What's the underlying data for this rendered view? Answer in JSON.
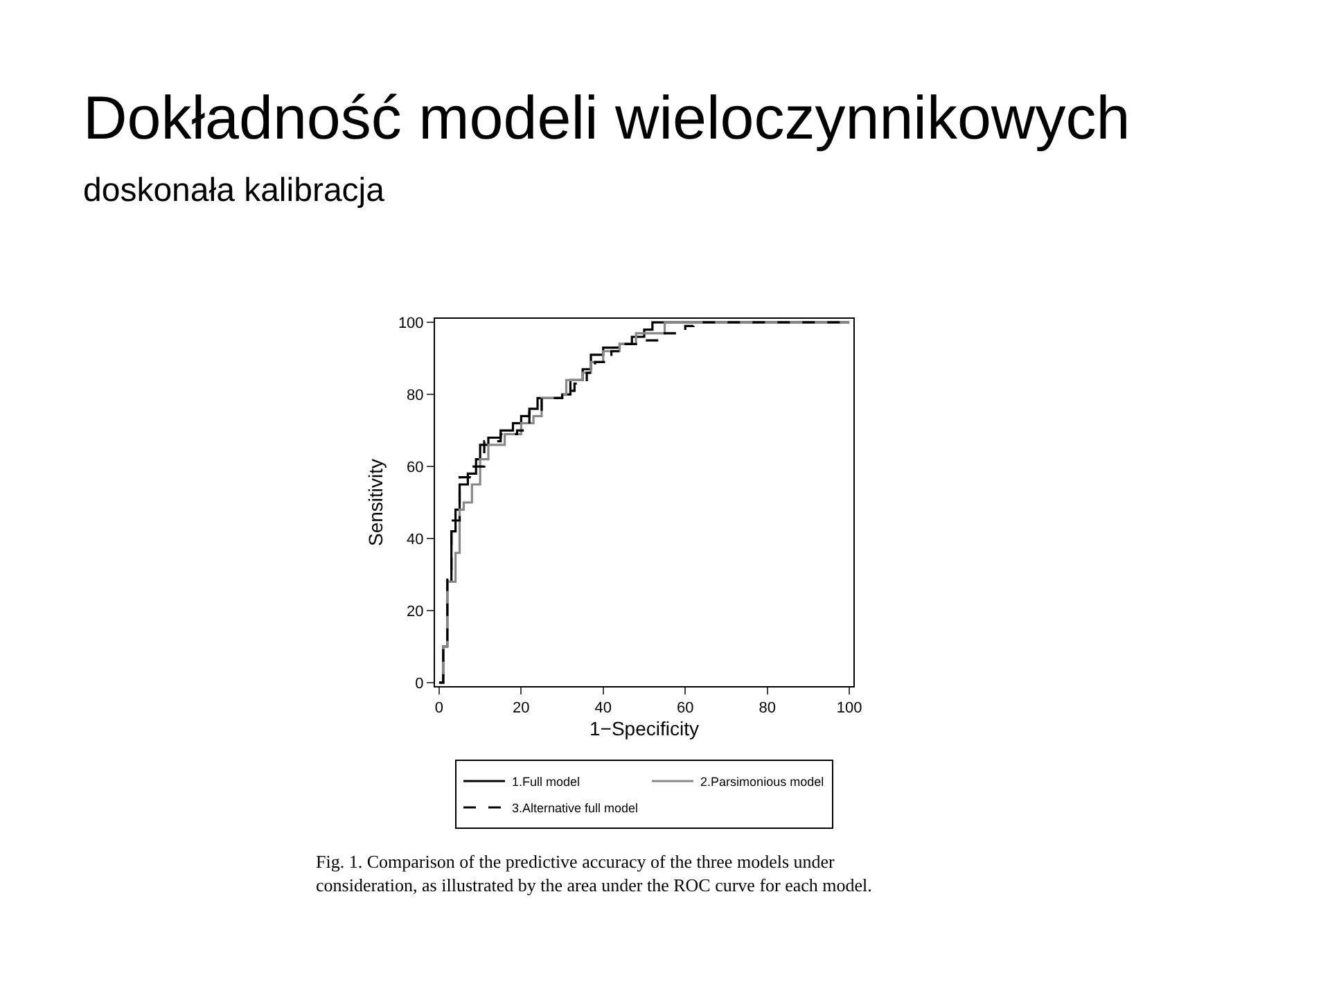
{
  "chart_data": {
    "type": "step",
    "title": "Dokładność modeli wieloczynnikowych",
    "subtitle": "doskonała kalibracja",
    "xlabel": "1−Specificity",
    "ylabel": "Sensitivity",
    "annotations": [
      "Fig. 1. Comparison of the predictive accuracy of the three models under consideration, as illustrated by the area under the ROC curve for each model."
    ],
    "xlim": [
      -1,
      101
    ],
    "ylim": [
      -1,
      101
    ],
    "xticks": [
      0,
      20,
      40,
      60,
      80,
      100
    ],
    "yticks": [
      0,
      20,
      40,
      60,
      80,
      100
    ],
    "grid": false,
    "legend": "bottom",
    "marker": "none",
    "series": [
      {
        "name": "1.Full model",
        "color": "#000000",
        "line_style": "solid",
        "x": [
          0,
          1,
          2,
          3,
          4,
          5,
          7,
          9,
          10,
          12,
          15,
          18,
          20,
          22,
          24,
          30,
          32,
          35,
          37,
          40,
          44,
          47,
          50,
          52,
          100
        ],
        "values": [
          0,
          10,
          28,
          42,
          48,
          55,
          58,
          62,
          66,
          68,
          70,
          72,
          74,
          76,
          79,
          80,
          84,
          87,
          91,
          93,
          94,
          96,
          98,
          100,
          100
        ]
      },
      {
        "name": "2.Parsimonious model",
        "color": "#888888",
        "line_style": "solid",
        "x": [
          0,
          1,
          2,
          4,
          5,
          6,
          8,
          10,
          12,
          16,
          20,
          23,
          25,
          30,
          31,
          35,
          37,
          40,
          44,
          48,
          55,
          100
        ],
        "values": [
          0,
          10,
          28,
          36,
          48,
          50,
          55,
          62,
          66,
          69,
          72,
          74,
          79,
          80,
          84,
          86,
          89,
          92,
          94,
          97,
          100,
          100
        ]
      },
      {
        "name": "3.Alternative full model",
        "color": "#000000",
        "line_style": "dashed",
        "x": [
          0,
          1,
          2,
          3,
          5,
          8,
          11,
          15,
          19,
          22,
          25,
          30,
          33,
          36,
          38,
          42,
          45,
          50,
          54,
          60,
          62,
          100
        ],
        "values": [
          0,
          10,
          30,
          45,
          57,
          60,
          67,
          69,
          70,
          75,
          79,
          81,
          83,
          86,
          89,
          92,
          94,
          95,
          97,
          99,
          100,
          100
        ]
      }
    ]
  }
}
